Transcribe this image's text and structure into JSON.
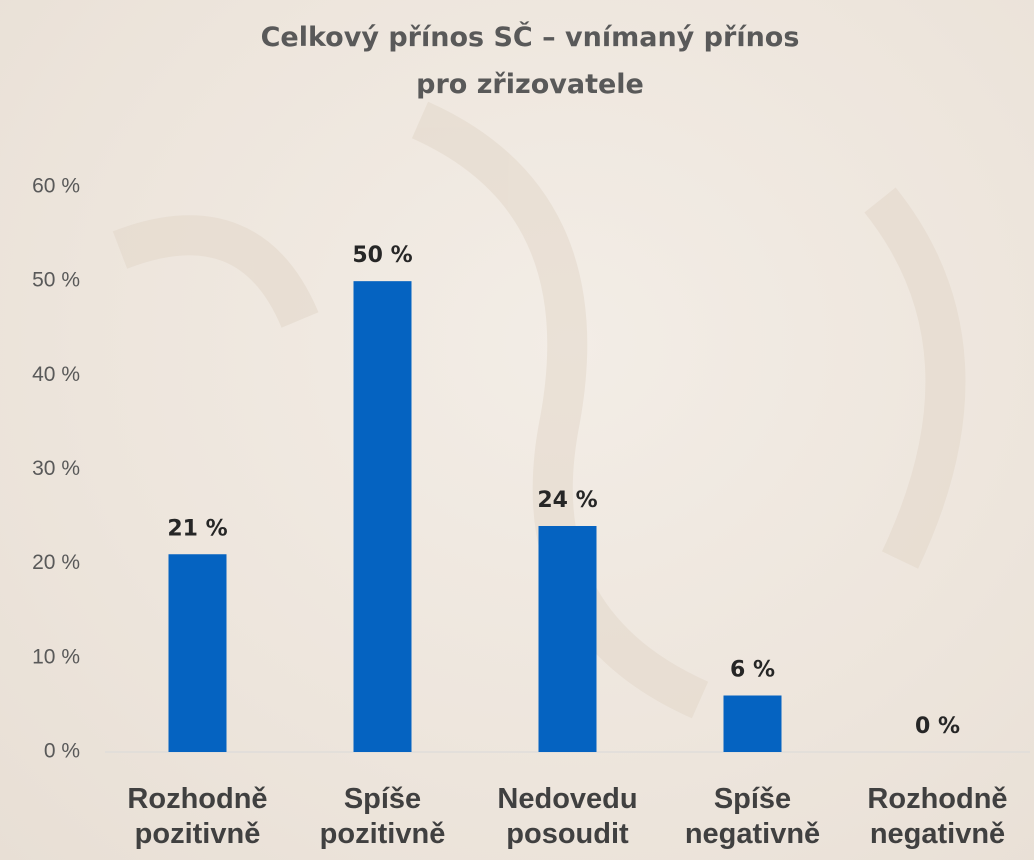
{
  "chart_data": {
    "type": "bar",
    "title": "Celkový přínos SČ – vnímaný přínos\npro zřizovatele",
    "categories": [
      "Rozhodně\npozitivně",
      "Spíše\npozitivně",
      "Nedovedu\nposoudit",
      "Spíše\nnegativně",
      "Rozhodně\nnegativně"
    ],
    "values": [
      21,
      50,
      24,
      6,
      0
    ],
    "value_labels": [
      "21 %",
      "50 %",
      "24 %",
      "6 %",
      "0 %"
    ],
    "color": "#0563c1",
    "ylim": [
      0,
      60
    ],
    "yticks": [
      {
        "value": 0,
        "label": "0 %"
      },
      {
        "value": 10,
        "label": "10 %"
      },
      {
        "value": 20,
        "label": "20 %"
      },
      {
        "value": 30,
        "label": "30 %"
      },
      {
        "value": 40,
        "label": "40 %"
      },
      {
        "value": 50,
        "label": "50 %"
      },
      {
        "value": 60,
        "label": "60 %"
      }
    ],
    "grid": false
  }
}
